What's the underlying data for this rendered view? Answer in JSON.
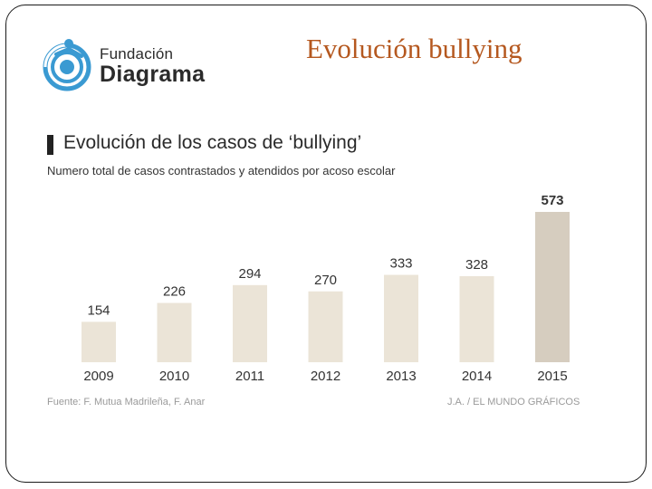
{
  "header": {
    "logo_line1": "Fundación",
    "logo_line2": "Diagrama",
    "slide_title": "Evolución bullying"
  },
  "colors": {
    "bar": "#ebe4d7",
    "bar_highlight": "#d6cdbf",
    "title_accent": "#b5581f",
    "logo_blue": "#3a9ad2"
  },
  "icons": {
    "logo": "fundacion-diagrama-logo-icon"
  },
  "chart_data": {
    "type": "bar",
    "title": "Evolución de los casos de ‘bullying’",
    "subtitle": "Numero total de casos contrastados y atendidos por acoso escolar",
    "categories": [
      "2009",
      "2010",
      "2011",
      "2012",
      "2013",
      "2014",
      "2015"
    ],
    "values": [
      154,
      226,
      294,
      270,
      333,
      328,
      573
    ],
    "highlight_index": 6,
    "ylim": [
      0,
      600
    ],
    "grid": false,
    "source": "Fuente: F. Mutua Madrileña, F. Anar",
    "credit": "J.A. / EL MUNDO GRÁFICOS"
  }
}
